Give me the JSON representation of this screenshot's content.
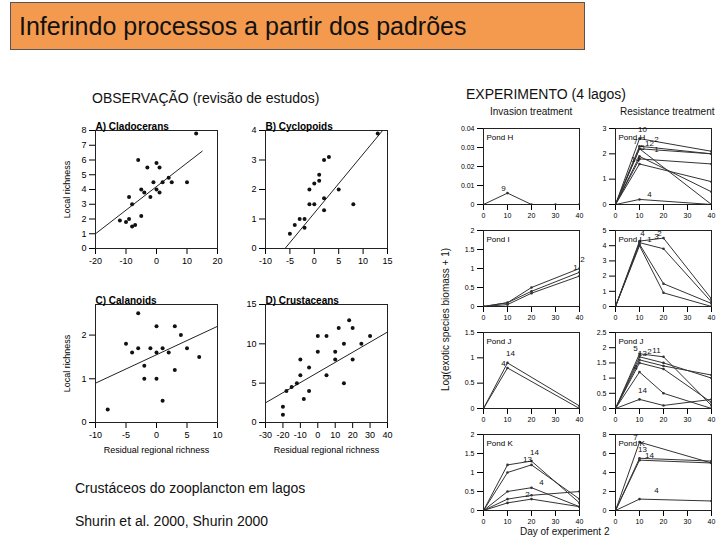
{
  "slide": {
    "title": "Inferindo processos a partir dos padrões",
    "observation_heading": "OBSERVAÇÃO (revisão de estudos)",
    "experiment_heading": "EXPERIMENTO (4 lagos)",
    "caption": [
      "Crustáceos do zooplancton em lagos",
      "Shurin et al. 2000, Shurin 2000"
    ],
    "experiment_columns": [
      "Invasion treatment",
      "Resistance treatment"
    ],
    "experiment_ylabel": "Log(exotic species biomass + 1)",
    "experiment_xlabel": "Day of experiment 2"
  },
  "chart_data": [
    {
      "type": "scatter",
      "title": "A) Cladocerans",
      "ylabel": "Local richness",
      "x": [
        -10,
        -12,
        -8,
        -9,
        -7,
        -5,
        -8,
        -9,
        -5,
        -4,
        -2,
        -6,
        -3,
        0,
        1,
        2,
        0,
        1,
        5,
        10,
        13,
        -1,
        4
      ],
      "values": [
        1.8,
        1.9,
        1.5,
        2,
        1.6,
        2.2,
        3,
        3.5,
        4,
        3.8,
        3.5,
        6,
        5.5,
        5.8,
        5.5,
        4.5,
        4,
        3.8,
        4.5,
        4.5,
        7.8,
        4.5,
        4.8
      ],
      "fit": {
        "x": [
          -20,
          15
        ],
        "values": [
          1,
          6.6
        ]
      },
      "xlim": [
        -20,
        20
      ],
      "xticks": [
        -20,
        -10,
        0,
        10,
        20
      ],
      "ylim": [
        0,
        8
      ],
      "yticks": [
        0,
        1,
        2,
        3,
        4,
        5,
        6,
        7,
        8
      ]
    },
    {
      "type": "scatter",
      "title": "B) Cyclopoids",
      "x": [
        -5,
        -4,
        -3,
        -2,
        -2,
        -1,
        0,
        -1,
        0,
        1,
        1,
        2,
        2,
        2,
        3,
        5,
        8,
        13
      ],
      "values": [
        0.5,
        0.8,
        1,
        1,
        0.7,
        1.5,
        1.5,
        2,
        2.2,
        2.3,
        2.5,
        1.3,
        1.7,
        3,
        3.1,
        2,
        1.5,
        3.9
      ],
      "fit": {
        "x": [
          -6,
          14
        ],
        "values": [
          0,
          4
        ]
      },
      "xlim": [
        -10,
        15
      ],
      "xticks": [
        -10,
        -5,
        0,
        5,
        10,
        15
      ],
      "ylim": [
        0,
        4
      ],
      "yticks": [
        0,
        1,
        2,
        3,
        4
      ]
    },
    {
      "type": "scatter",
      "title": "C) Calanoids",
      "ylabel": "Local richness",
      "xlabel": "Residual regional richness",
      "x": [
        -8,
        -5,
        -4,
        -3,
        -3,
        -2,
        -1,
        0,
        0,
        1,
        2,
        3,
        4,
        5,
        7,
        1,
        -2,
        0,
        3
      ],
      "values": [
        0.3,
        1.8,
        1.6,
        1.7,
        2.5,
        1.3,
        1.7,
        1.6,
        1.0,
        1.7,
        1.6,
        2.2,
        2.0,
        1.7,
        1.5,
        0.5,
        1.0,
        2.2,
        1.2
      ],
      "fit": {
        "x": [
          -10,
          10
        ],
        "values": [
          0.9,
          2.2
        ]
      },
      "xlim": [
        -10,
        10
      ],
      "xticks": [
        -10,
        -5,
        0,
        5,
        10
      ],
      "ylim": [
        0,
        2.7
      ],
      "yticks": [
        0,
        1,
        2
      ]
    },
    {
      "type": "scatter",
      "title": "D) Crustaceans",
      "xlabel": "Residual regional richness",
      "x": [
        -20,
        -18,
        -15,
        -12,
        -10,
        -10,
        -5,
        -5,
        0,
        0,
        5,
        5,
        10,
        10,
        12,
        15,
        18,
        20,
        20,
        25,
        30,
        15,
        -20,
        -8
      ],
      "values": [
        2,
        4,
        4.5,
        5,
        6,
        8,
        4,
        7,
        9,
        11,
        11,
        6,
        9,
        8,
        12,
        10,
        13,
        12,
        8,
        10,
        11,
        5,
        1,
        3
      ],
      "fit": {
        "x": [
          -30,
          40
        ],
        "values": [
          2.5,
          11.5
        ]
      },
      "xlim": [
        -30,
        40
      ],
      "xticks": [
        -30,
        -20,
        -10,
        0,
        10,
        20,
        30,
        40
      ],
      "ylim": [
        0,
        15
      ],
      "yticks": [
        0,
        5,
        10,
        15
      ]
    },
    {
      "type": "line",
      "title": "Pond H",
      "xlim": [
        0,
        40
      ],
      "xticks": [
        0,
        10,
        20,
        30,
        40
      ],
      "ylim": [
        0,
        0.04
      ],
      "yticks": [
        0,
        0.01,
        0.02,
        0.03,
        0.04
      ],
      "series": [
        {
          "name": "9",
          "x": [
            0,
            10,
            20,
            30,
            40
          ],
          "values": [
            0,
            0.006,
            0,
            0,
            0
          ]
        }
      ]
    },
    {
      "type": "line",
      "title": "Pond H",
      "xlim": [
        0,
        40
      ],
      "xticks": [
        0,
        10,
        20,
        30,
        40
      ],
      "ylim": [
        0,
        3
      ],
      "yticks": [
        0,
        1,
        2,
        3
      ],
      "series": [
        {
          "name": "7",
          "x": [
            0,
            10,
            40
          ],
          "values": [
            0,
            2.3,
            2.0
          ]
        },
        {
          "name": "10",
          "x": [
            0,
            10,
            40
          ],
          "values": [
            0,
            2.6,
            2.1
          ]
        },
        {
          "name": "12",
          "x": [
            0,
            10,
            40
          ],
          "values": [
            0,
            2.2,
            2.0
          ]
        },
        {
          "name": "1",
          "x": [
            0,
            10,
            40
          ],
          "values": [
            0,
            1.8,
            1.6
          ]
        },
        {
          "name": "14",
          "x": [
            0,
            10,
            40
          ],
          "values": [
            0,
            1.6,
            0.9
          ]
        },
        {
          "name": "5",
          "x": [
            0,
            10,
            40
          ],
          "values": [
            0,
            1.9,
            0.5
          ]
        },
        {
          "name": "4",
          "x": [
            0,
            10,
            40
          ],
          "values": [
            0,
            0.2,
            0
          ]
        },
        {
          "name": "2",
          "x": [
            0,
            10,
            40
          ],
          "values": [
            0,
            2.2,
            0
          ]
        }
      ]
    },
    {
      "type": "line",
      "title": "Pond I",
      "xlim": [
        0,
        40
      ],
      "xticks": [
        0,
        10,
        20,
        30,
        40
      ],
      "ylim": [
        0,
        2
      ],
      "yticks": [
        0,
        0.5,
        1,
        1.5,
        2
      ],
      "series": [
        {
          "name": "1",
          "x": [
            0,
            10,
            20,
            40
          ],
          "values": [
            0,
            0.1,
            0.4,
            0.9
          ]
        },
        {
          "name": "2",
          "x": [
            0,
            10,
            20,
            40
          ],
          "values": [
            0,
            0.1,
            0.5,
            1.0
          ]
        },
        {
          "name": "3",
          "x": [
            0,
            10,
            20,
            40
          ],
          "values": [
            0,
            0.05,
            0.35,
            0.8
          ]
        }
      ]
    },
    {
      "type": "line",
      "title": "Pond I",
      "xlim": [
        0,
        40
      ],
      "xticks": [
        0,
        10,
        20,
        30,
        40
      ],
      "ylim": [
        0,
        5
      ],
      "yticks": [
        0,
        1,
        2,
        3,
        4,
        5
      ],
      "series": [
        {
          "name": "2",
          "x": [
            0,
            10,
            20,
            40
          ],
          "values": [
            0,
            4.3,
            4.5,
            0.5
          ]
        },
        {
          "name": "4",
          "x": [
            0,
            10,
            20,
            40
          ],
          "values": [
            0,
            4.2,
            3.8,
            0.3
          ]
        },
        {
          "name": "1",
          "x": [
            0,
            10,
            20,
            40
          ],
          "values": [
            0,
            4.1,
            1.5,
            0.2
          ]
        },
        {
          "name": "3",
          "x": [
            0,
            10,
            20,
            40
          ],
          "values": [
            0,
            4.0,
            0.9,
            0
          ]
        }
      ]
    },
    {
      "type": "line",
      "title": "Pond J",
      "xlim": [
        0,
        40
      ],
      "xticks": [
        0,
        10,
        20,
        30,
        40
      ],
      "ylim": [
        0,
        1.5
      ],
      "yticks": [
        0,
        0.5,
        1,
        1.5
      ],
      "series": [
        {
          "name": "4",
          "x": [
            0,
            10,
            40
          ],
          "values": [
            0,
            0.8,
            0
          ]
        },
        {
          "name": "14",
          "x": [
            0,
            10,
            40
          ],
          "values": [
            0,
            0.9,
            0.05
          ]
        }
      ]
    },
    {
      "type": "line",
      "title": "Pond J",
      "xlim": [
        0,
        40
      ],
      "xticks": [
        0,
        10,
        20,
        30,
        40
      ],
      "ylim": [
        0,
        2.5
      ],
      "yticks": [
        0,
        0.5,
        1,
        1.5,
        2,
        2.5
      ],
      "series": [
        {
          "name": "5",
          "x": [
            0,
            10,
            20,
            40
          ],
          "values": [
            0,
            1.8,
            1.7,
            0.1
          ]
        },
        {
          "name": "13",
          "x": [
            0,
            10,
            20,
            40
          ],
          "values": [
            0,
            1.5,
            1.3,
            0.2
          ]
        },
        {
          "name": "2",
          "x": [
            0,
            10,
            20,
            40
          ],
          "values": [
            0,
            1.7,
            1.5,
            1.0
          ]
        },
        {
          "name": "11",
          "x": [
            0,
            10,
            20,
            40
          ],
          "values": [
            0,
            1.6,
            1.4,
            1.1
          ]
        },
        {
          "name": "4",
          "x": [
            0,
            10,
            20,
            40
          ],
          "values": [
            0,
            1.2,
            0.5,
            0
          ]
        },
        {
          "name": "14",
          "x": [
            0,
            10,
            20,
            40
          ],
          "values": [
            0,
            0.3,
            0.1,
            0.3
          ]
        }
      ]
    },
    {
      "type": "line",
      "title": "Pond K",
      "xlim": [
        0,
        40
      ],
      "xticks": [
        0,
        10,
        20,
        30,
        40
      ],
      "ylim": [
        0,
        2
      ],
      "yticks": [
        0,
        0.5,
        1,
        1.5,
        2
      ],
      "series": [
        {
          "name": "13",
          "x": [
            0,
            10,
            20,
            40
          ],
          "values": [
            0,
            1.0,
            1.2,
            0.3
          ]
        },
        {
          "name": "14",
          "x": [
            0,
            10,
            20,
            40
          ],
          "values": [
            0,
            1.2,
            1.3,
            0.2
          ]
        },
        {
          "name": "4",
          "x": [
            0,
            10,
            20,
            40
          ],
          "values": [
            0,
            0.5,
            0.6,
            0.1
          ]
        },
        {
          "name": "6",
          "x": [
            0,
            10,
            20,
            40
          ],
          "values": [
            0,
            0.3,
            0.4,
            0.5
          ]
        },
        {
          "name": "2",
          "x": [
            0,
            10,
            20,
            40
          ],
          "values": [
            0,
            0.2,
            0.3,
            0.1
          ]
        }
      ]
    },
    {
      "type": "line",
      "title": "Pond K",
      "xlim": [
        0,
        40
      ],
      "xticks": [
        0,
        10,
        20,
        30,
        40
      ],
      "ylim": [
        0,
        8
      ],
      "yticks": [
        0,
        2,
        4,
        6,
        8
      ],
      "series": [
        {
          "name": "7",
          "x": [
            0,
            10,
            40
          ],
          "values": [
            0,
            7.2,
            5
          ]
        },
        {
          "name": "13",
          "x": [
            0,
            10,
            40
          ],
          "values": [
            0,
            5.5,
            5.2
          ]
        },
        {
          "name": "14",
          "x": [
            0,
            10,
            40
          ],
          "values": [
            0,
            5.3,
            5.0
          ]
        },
        {
          "name": "4",
          "x": [
            0,
            10,
            40
          ],
          "values": [
            0,
            1.2,
            1.0
          ]
        }
      ]
    }
  ]
}
